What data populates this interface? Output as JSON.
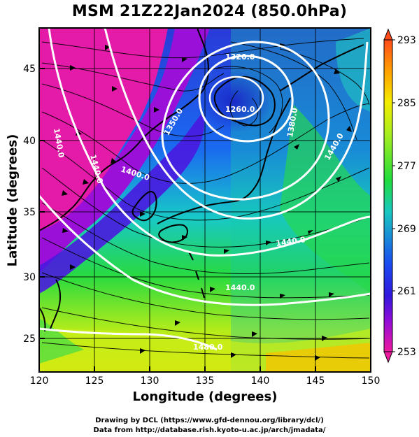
{
  "title": "MSM 21Z22Jan2024 (850.0hPa)",
  "xaxis": {
    "label": "Longitude (degrees)",
    "ticks": [
      "120",
      "125",
      "130",
      "135",
      "140",
      "145",
      "150"
    ]
  },
  "yaxis": {
    "label": "Latitude  (degrees)",
    "ticks": [
      "25",
      "30",
      "35",
      "40",
      "45"
    ]
  },
  "map_extent": {
    "lon": [
      120,
      150
    ],
    "lat": [
      22.4,
      47.6
    ]
  },
  "colorbar": {
    "ticks": [
      "293",
      "285",
      "277",
      "269",
      "261",
      "253"
    ],
    "range": [
      253,
      293
    ],
    "colors": [
      "#ff4a1a",
      "#ffb000",
      "#e8f000",
      "#9cec1e",
      "#22dc3a",
      "#16c8b8",
      "#1a5cf0",
      "#2a1ae0",
      "#8a0cd8",
      "#e01aa8"
    ]
  },
  "contour_labels": [
    "1320.0",
    "1260.0",
    "1350.0",
    "1380.0",
    "1400.0",
    "1440.0",
    "1440.0",
    "1440.0",
    "1440.0",
    "1440.0",
    "1480.0"
  ],
  "credits": {
    "line1": "Drawing by DCL (https://www.gfd-dennou.org/library/dcl/)",
    "line2": "Data from http://database.rish.kyoto-u.ac.jp/arch/jmadata/"
  }
}
